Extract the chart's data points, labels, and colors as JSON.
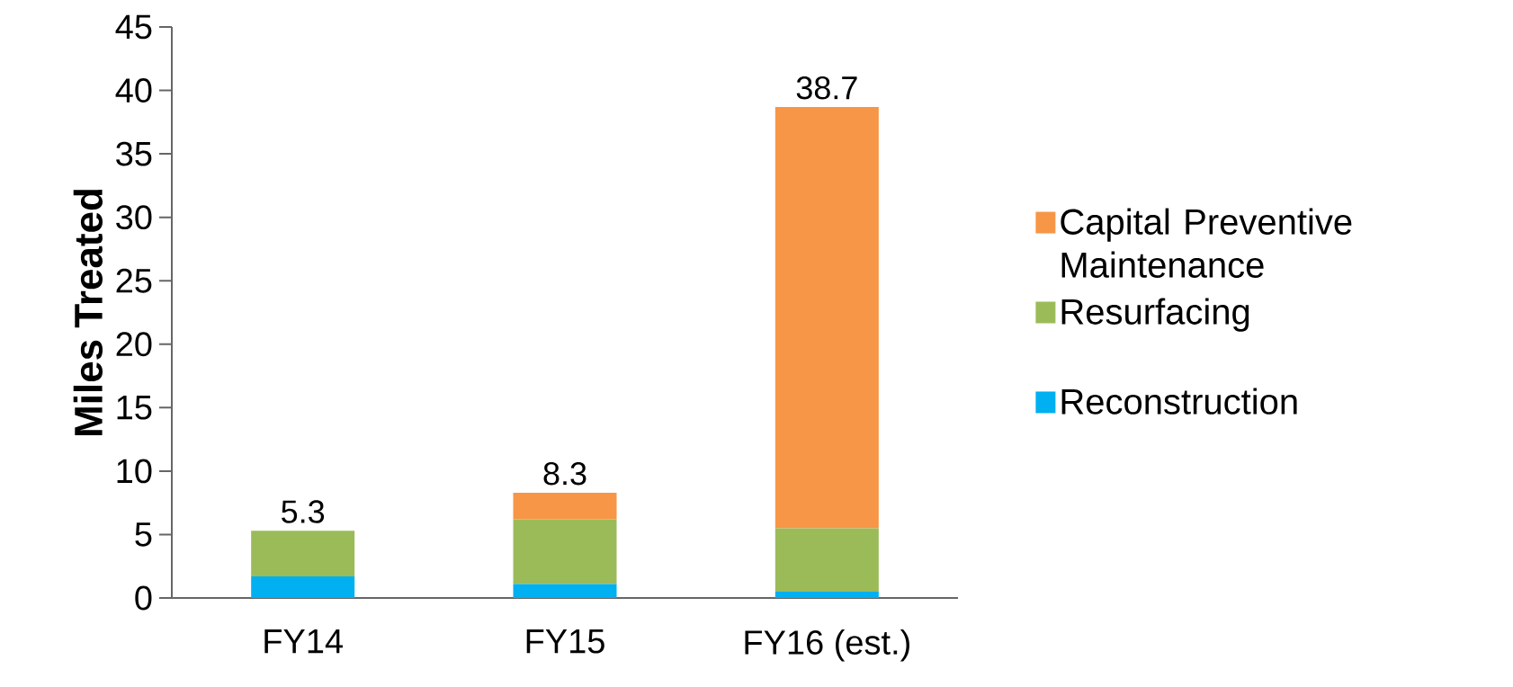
{
  "chart_data": {
    "type": "bar",
    "stacked": true,
    "ylabel": "Miles Treated",
    "categories": [
      "FY14",
      "FY15",
      "FY16 (est.)"
    ],
    "series": [
      {
        "name": "Reconstruction",
        "color": "#00b0f0",
        "values": [
          1.7,
          1.1,
          0.5
        ]
      },
      {
        "name": "Resurfacing",
        "color": "#9bbb59",
        "values": [
          3.6,
          5.1,
          5.0
        ]
      },
      {
        "name": "Capital Preventive Maintenance",
        "color": "#f79646",
        "values": [
          0,
          2.1,
          33.2
        ]
      }
    ],
    "totals": [
      "5.3",
      "8.3",
      "38.7"
    ],
    "ylim": [
      0,
      45
    ],
    "yticks": [
      0,
      5,
      10,
      15,
      20,
      25,
      30,
      35,
      40,
      45
    ],
    "grid": false,
    "legend": "right"
  }
}
